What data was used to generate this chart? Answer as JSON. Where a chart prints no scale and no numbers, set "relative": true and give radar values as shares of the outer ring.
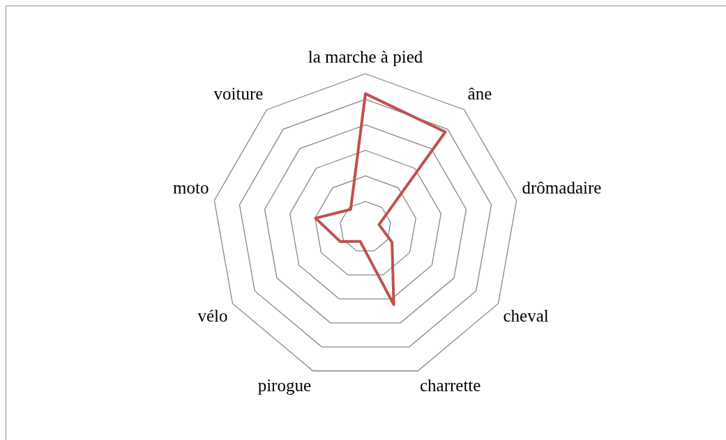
{
  "chart_data": {
    "type": "radar",
    "relative": true,
    "categories": [
      "la marche à pied",
      "âne",
      "drômadaire",
      "cheval",
      "charrette",
      "pirogue",
      "vélo",
      "moto",
      "voiture"
    ],
    "series": [
      {
        "color": "#c0504d",
        "values": [
          0.87,
          0.81,
          0.09,
          0.2,
          0.54,
          0.1,
          0.19,
          0.33,
          0.15
        ]
      }
    ],
    "legend": false,
    "marker": "none"
  }
}
